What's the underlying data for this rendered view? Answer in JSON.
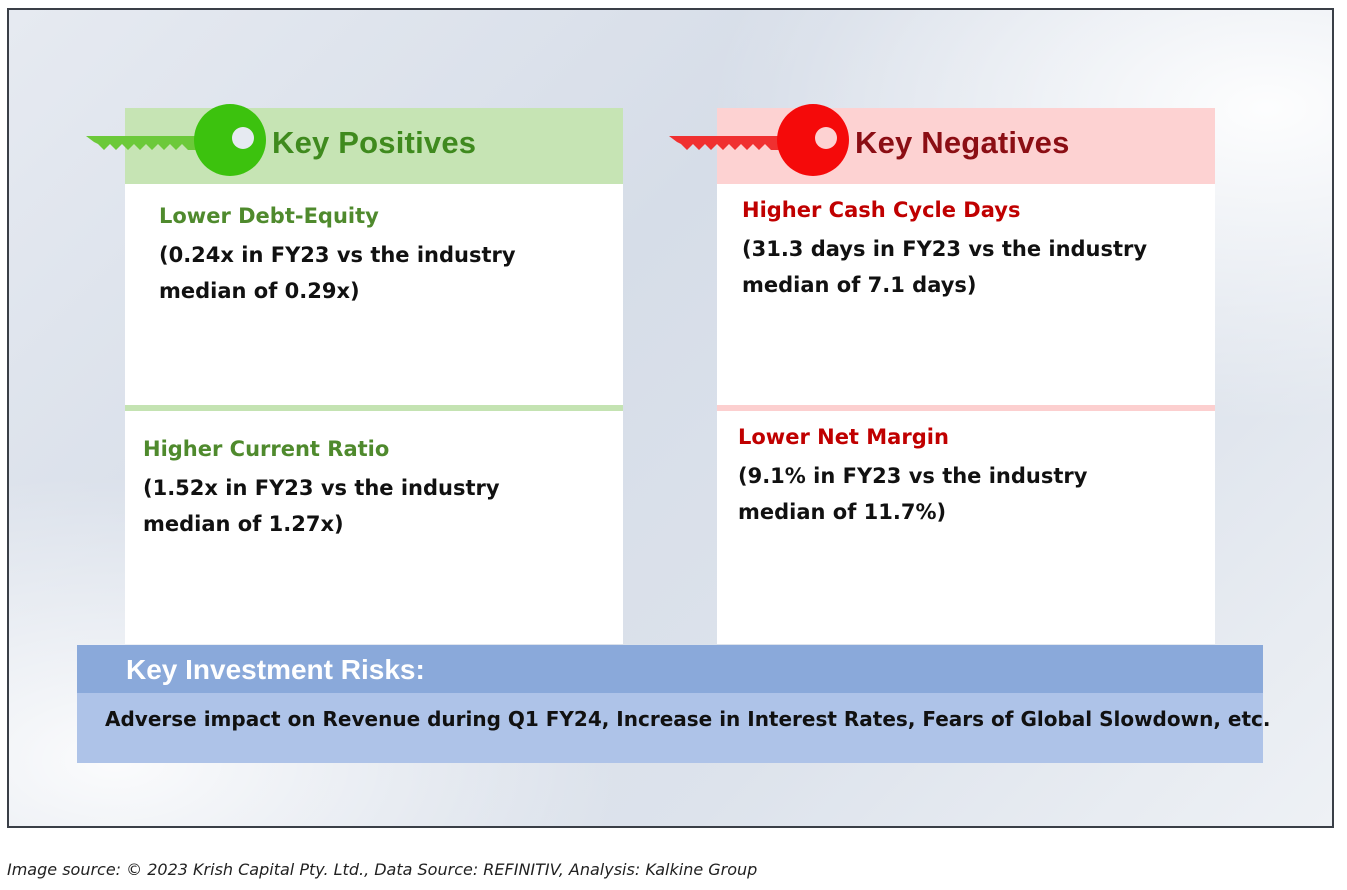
{
  "positives": {
    "title": "Key Positives",
    "accent_color": "#3f8a1e",
    "key_icon": "green-key-icon",
    "items": [
      {
        "title": "Lower Debt-Equity",
        "description": "(0.24x in FY23 vs the industry median of 0.29x)"
      },
      {
        "title": "Higher Current Ratio",
        "description": "(1.52x in FY23 vs the industry median of 1.27x)"
      }
    ]
  },
  "negatives": {
    "title": "Key Negatives",
    "accent_color": "#8b0e14",
    "key_icon": "red-key-icon",
    "items": [
      {
        "title": "Higher Cash Cycle Days",
        "description": "(31.3 days in FY23 vs the industry median of 7.1 days)"
      },
      {
        "title": "Lower Net Margin",
        "description": "(9.1% in FY23 vs the industry median of 11.7%)"
      }
    ]
  },
  "risks": {
    "title": "Key Investment Risks:",
    "text": "Adverse impact on Revenue during Q1 FY24, Increase in Interest Rates, Fears of Global Slowdown, etc."
  },
  "footer": {
    "source": "Image source: © 2023 Krish Capital Pty. Ltd., Data Source: REFINITIV, Analysis: Kalkine Group"
  }
}
